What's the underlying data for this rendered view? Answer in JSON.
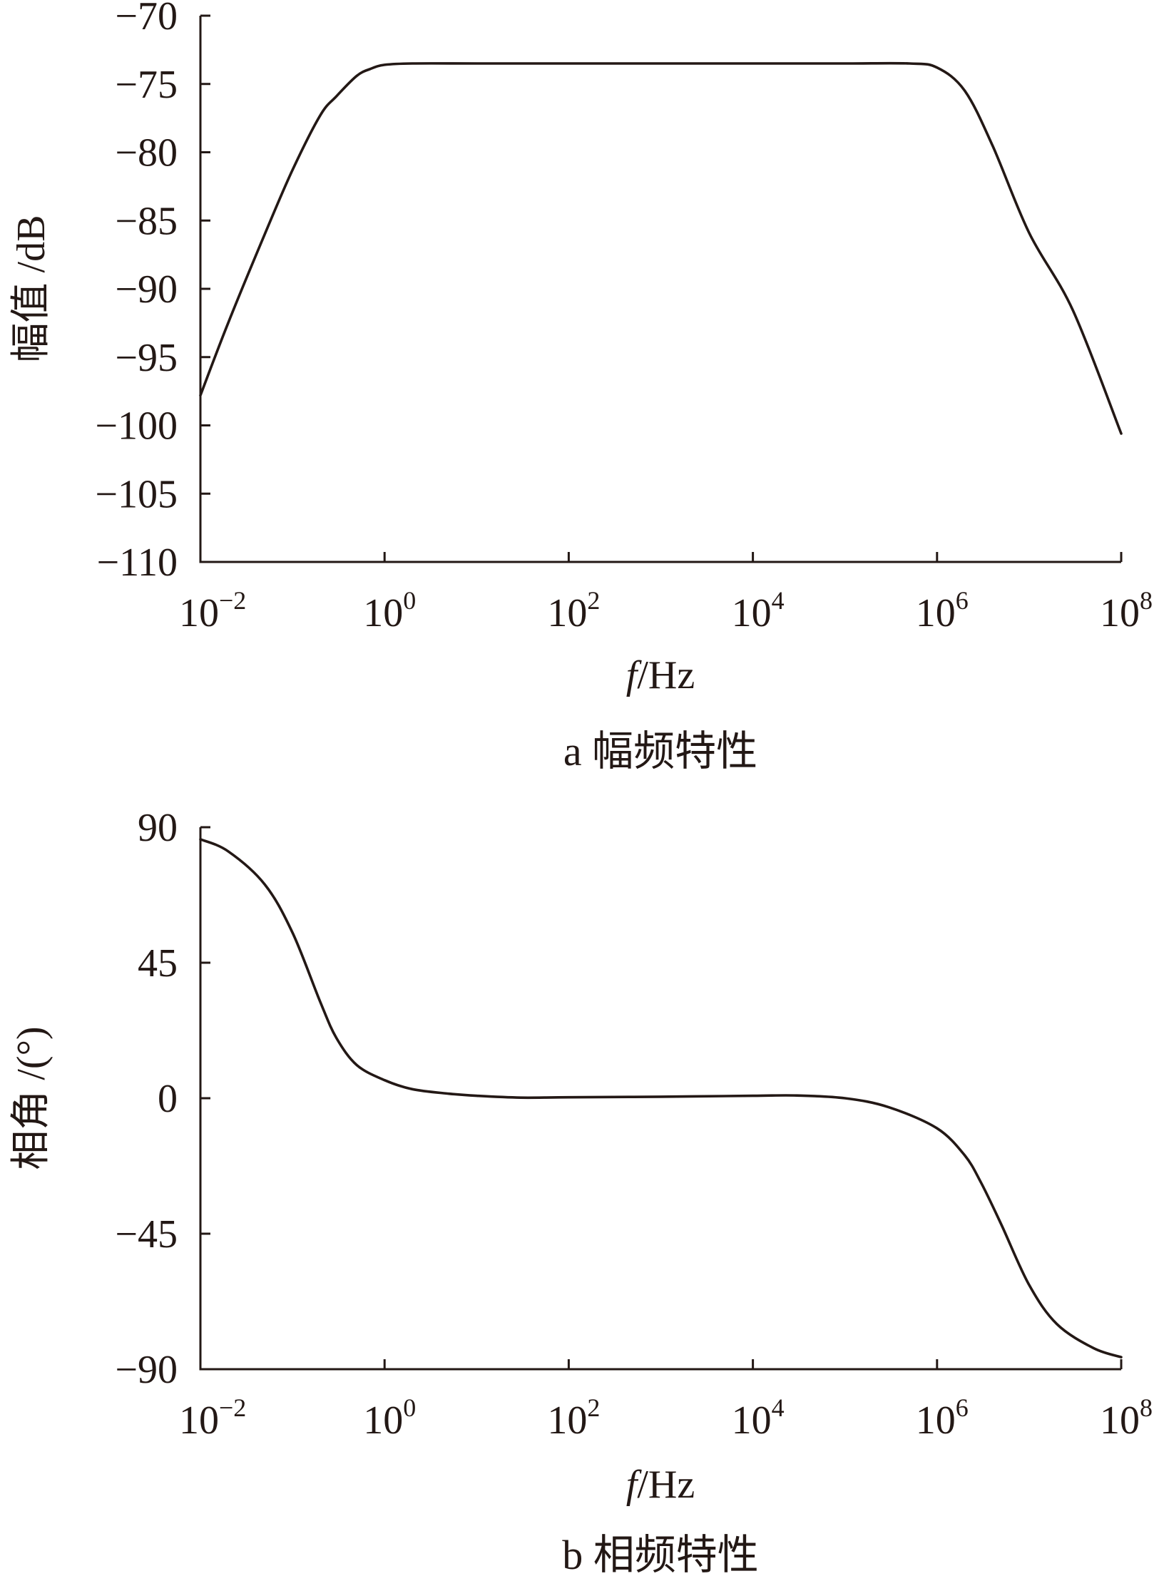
{
  "chart_data": [
    {
      "type": "line",
      "caption": "a 幅频特性",
      "title": "",
      "xlabel": {
        "italic": "f",
        "rest": "/Hz"
      },
      "ylabel": "幅值 /dB",
      "x_scale": "log",
      "xlim": [
        0.01,
        100000000
      ],
      "ylim": [
        -110,
        -70
      ],
      "x_ticks": [
        {
          "base": "10",
          "exp": "−2"
        },
        {
          "base": "10",
          "exp": "0"
        },
        {
          "base": "10",
          "exp": "2"
        },
        {
          "base": "10",
          "exp": "4"
        },
        {
          "base": "10",
          "exp": "6"
        },
        {
          "base": "10",
          "exp": "8"
        }
      ],
      "y_ticks": [
        "−70",
        "−75",
        "−80",
        "−85",
        "−90",
        "−95",
        "−100",
        "−105",
        "−110"
      ],
      "grid": false,
      "legend": "none",
      "line_color": "#231815",
      "series": [
        {
          "x": [
            0.01,
            0.02,
            0.05,
            0.1,
            0.2,
            0.3,
            0.5,
            0.7,
            1,
            2,
            10,
            100,
            1000,
            10000,
            100000,
            500000,
            1000000,
            2000000,
            4000000,
            10000000,
            30000000,
            100000000
          ],
          "y": [
            -97.8,
            -92.5,
            -86.0,
            -81.3,
            -77.3,
            -75.9,
            -74.4,
            -73.9,
            -73.6,
            -73.5,
            -73.5,
            -73.5,
            -73.5,
            -73.5,
            -73.5,
            -73.5,
            -73.8,
            -75.5,
            -79.5,
            -85.9,
            -91.6,
            -100.6
          ]
        }
      ]
    },
    {
      "type": "line",
      "caption": "b 相频特性",
      "title": "",
      "xlabel": {
        "italic": "f",
        "rest": "/Hz"
      },
      "ylabel": "相角 /(°)",
      "x_scale": "log",
      "xlim": [
        0.01,
        100000000
      ],
      "ylim": [
        -90,
        90
      ],
      "x_ticks": [
        {
          "base": "10",
          "exp": "−2"
        },
        {
          "base": "10",
          "exp": "0"
        },
        {
          "base": "10",
          "exp": "2"
        },
        {
          "base": "10",
          "exp": "4"
        },
        {
          "base": "10",
          "exp": "6"
        },
        {
          "base": "10",
          "exp": "8"
        }
      ],
      "y_ticks": [
        "90",
        "45",
        "0",
        "−45",
        "−90"
      ],
      "grid": false,
      "legend": "none",
      "line_color": "#231815",
      "series": [
        {
          "x": [
            0.01,
            0.02,
            0.05,
            0.1,
            0.2,
            0.3,
            0.5,
            1,
            2,
            5,
            10,
            30,
            100,
            1000,
            10000,
            30000,
            100000,
            300000,
            1000000,
            2000000,
            3000000,
            5000000,
            10000000,
            20000000,
            50000000,
            100000000
          ],
          "y": [
            86,
            82,
            71,
            55,
            32,
            20,
            11,
            6,
            3,
            1.5,
            0.8,
            0.2,
            0.3,
            0.5,
            0.8,
            0.9,
            0,
            -3,
            -10,
            -19,
            -28,
            -42,
            -62,
            -75,
            -83,
            -86
          ]
        }
      ]
    }
  ]
}
